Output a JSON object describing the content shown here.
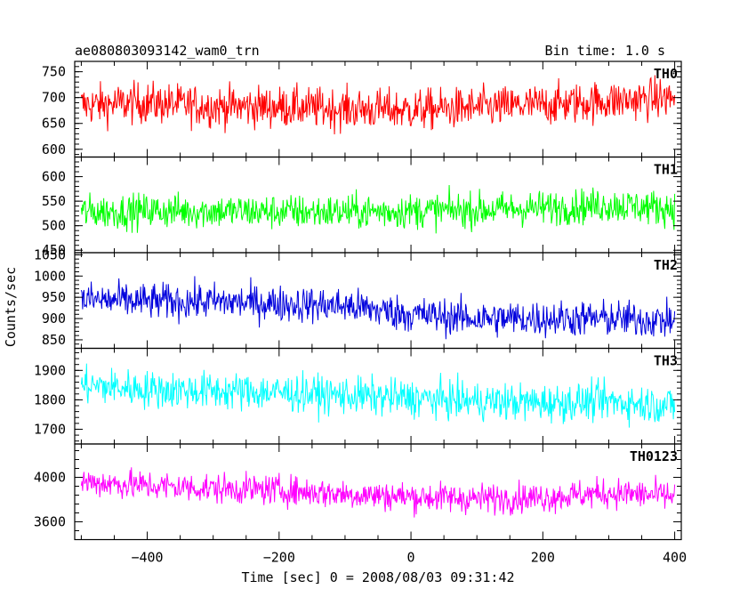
{
  "header": {
    "title": "ae080803093142_wam0_trn",
    "bin_time": "Bin time: 1.0 s"
  },
  "axes": {
    "xlabel": "Time [sec] 0 = 2008/08/03 09:31:42",
    "ylabel": "Counts/sec"
  },
  "chart_data": {
    "type": "line",
    "title": "ae080803093142_wam0_trn",
    "xlabel": "Time [sec] 0 = 2008/08/03 09:31:42",
    "ylabel": "Counts/sec",
    "xlim": [
      -510,
      410
    ],
    "x_ticks": [
      -400,
      -200,
      0,
      200,
      400
    ],
    "x_tick_labels": [
      "−400",
      "−200",
      "0",
      "200",
      "400"
    ],
    "x_range": [
      -500,
      400
    ],
    "bin": 1.0,
    "grid": false,
    "legend": "none",
    "panels": [
      {
        "name": "TH0",
        "color": "#ff0000",
        "ylim": [
          585,
          770
        ],
        "y_ticks": [
          600,
          650,
          700,
          750
        ],
        "y_tick_labels": [
          "600",
          "650",
          "700",
          "750"
        ],
        "series": [
          {
            "name": "TH0",
            "x": [
              -500,
              -400,
              -300,
              -200,
              -100,
              0,
              100,
              200,
              300,
              400
            ],
            "values": [
              685,
              690,
              683,
              682,
              678,
              676,
              680,
              686,
              693,
              700
            ]
          }
        ],
        "noise": 28,
        "min": 590,
        "max": 770
      },
      {
        "name": "TH1",
        "color": "#00ff00",
        "ylim": [
          445,
          640
        ],
        "y_ticks": [
          450,
          500,
          550,
          600
        ],
        "y_tick_labels": [
          "450",
          "500",
          "550",
          "600"
        ],
        "series": [
          {
            "name": "TH1",
            "x": [
              -500,
              -400,
              -300,
              -200,
              -100,
              0,
              100,
              200,
              300,
              400
            ],
            "values": [
              528,
              530,
              530,
              528,
              528,
              530,
              532,
              536,
              542,
              535
            ]
          }
        ],
        "noise": 25,
        "min": 445,
        "max": 640
      },
      {
        "name": "TH2",
        "color": "#0000dd",
        "ylim": [
          830,
          1055
        ],
        "y_ticks": [
          850,
          900,
          950,
          1000,
          1050
        ],
        "y_tick_labels": [
          "850",
          "900",
          "950",
          "1000",
          "1050"
        ],
        "series": [
          {
            "name": "TH2",
            "x": [
              -500,
              -400,
              -300,
              -200,
              -100,
              0,
              100,
              200,
              300,
              400
            ],
            "values": [
              945,
              940,
              940,
              935,
              930,
              910,
              900,
              900,
              900,
              895
            ]
          }
        ],
        "noise": 30,
        "min": 830,
        "max": 1055
      },
      {
        "name": "TH3",
        "color": "#00ffff",
        "ylim": [
          1650,
          1975
        ],
        "y_ticks": [
          1700,
          1800,
          1900
        ],
        "y_tick_labels": [
          "1700",
          "1800",
          "1900"
        ],
        "series": [
          {
            "name": "TH3",
            "x": [
              -500,
              -400,
              -300,
              -200,
              -100,
              0,
              100,
              200,
              300,
              400
            ],
            "values": [
              1850,
              1835,
              1830,
              1825,
              1815,
              1805,
              1795,
              1790,
              1795,
              1780
            ]
          }
        ],
        "noise": 45,
        "min": 1660,
        "max": 1975
      },
      {
        "name": "TH0123",
        "color": "#ff00ff",
        "ylim": [
          3440,
          4300
        ],
        "y_ticks": [
          3600,
          4000
        ],
        "y_tick_labels": [
          "3600",
          "4000"
        ],
        "series": [
          {
            "name": "TH0123",
            "x": [
              -500,
              -400,
              -300,
              -200,
              -100,
              0,
              100,
              200,
              300,
              400
            ],
            "values": [
              3960,
              3925,
              3900,
              3885,
              3850,
              3825,
              3810,
              3820,
              3860,
              3830
            ]
          }
        ],
        "noise": 95,
        "min": 3450,
        "max": 4300
      }
    ]
  }
}
